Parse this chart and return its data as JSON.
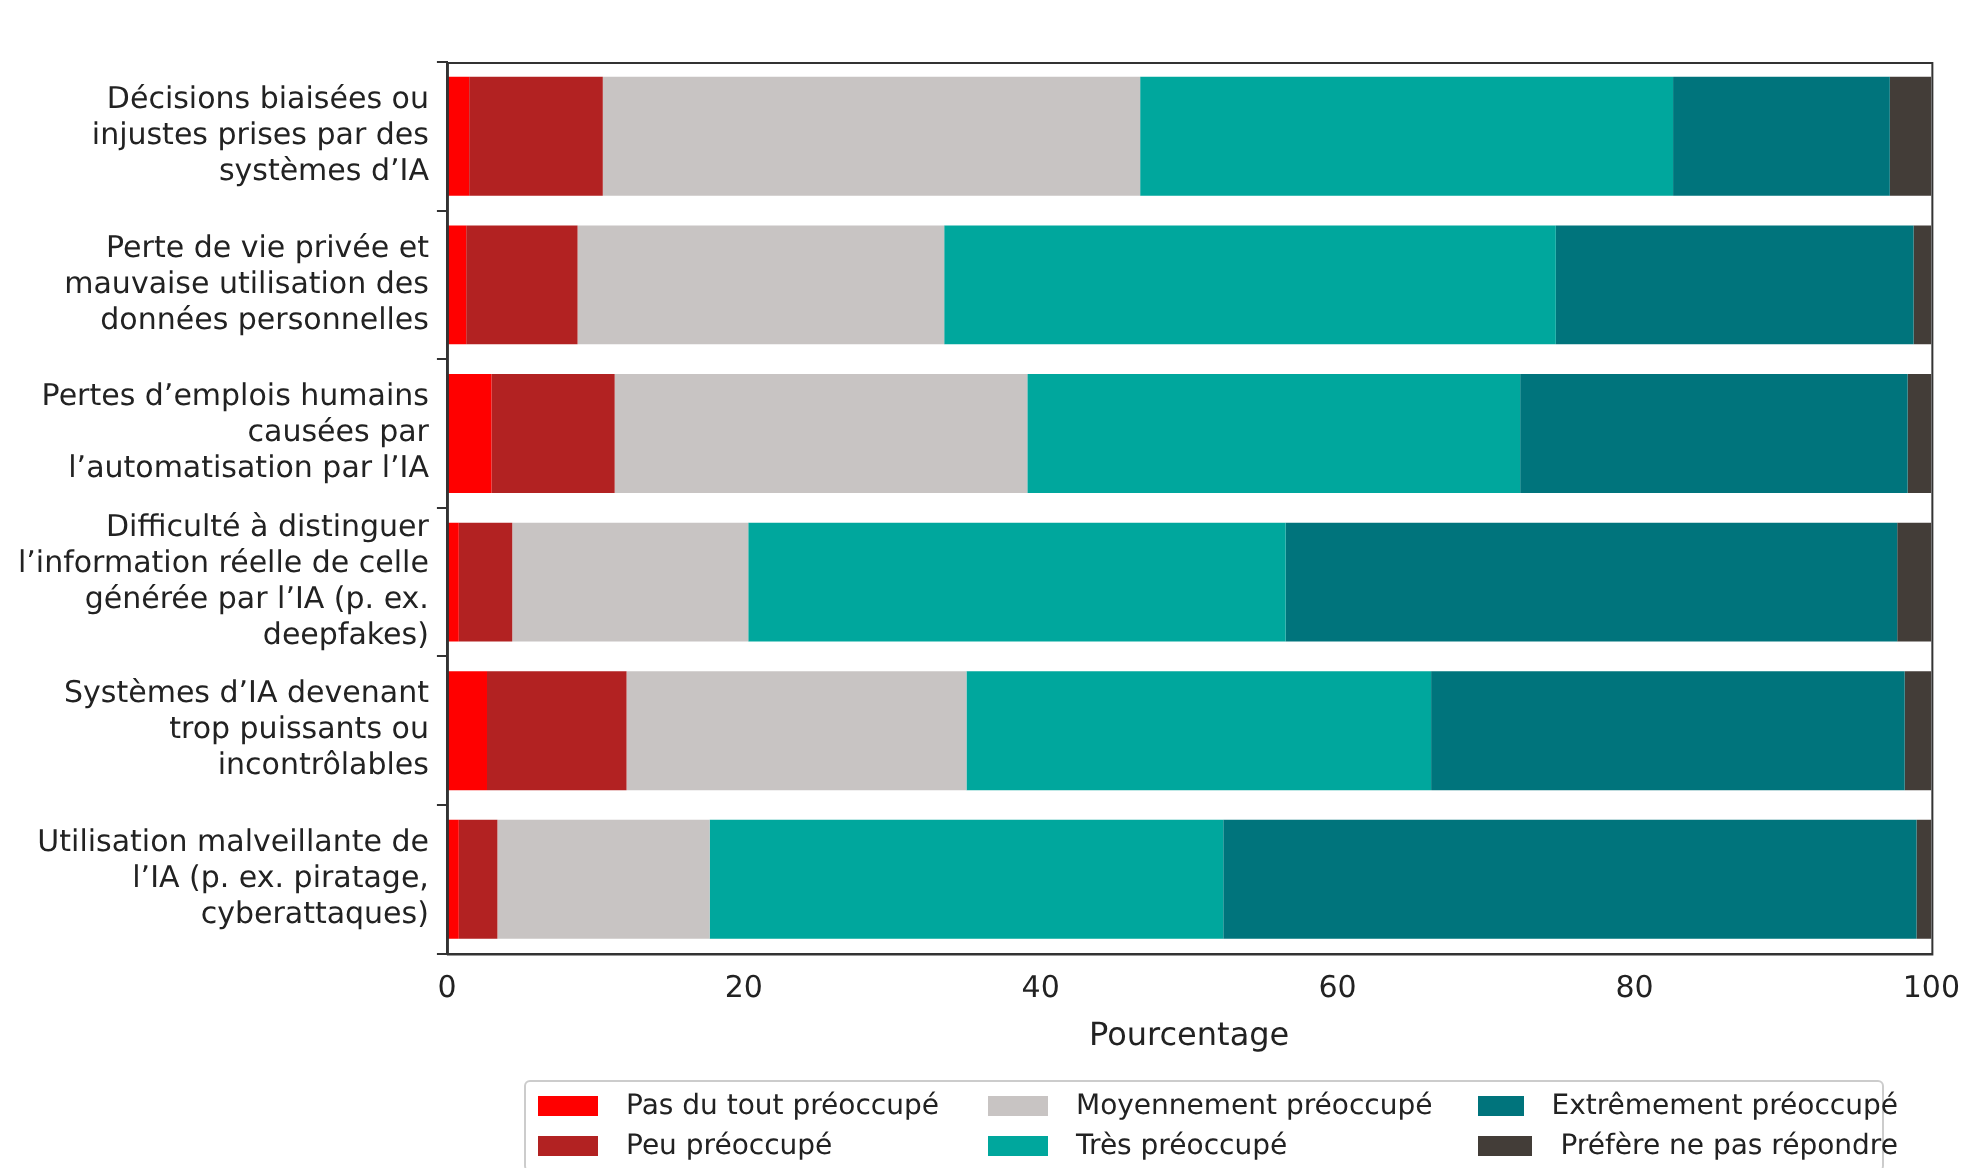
{
  "chart_data": {
    "type": "bar",
    "orientation": "horizontal",
    "stacked": true,
    "categories": [
      "Décisions biaisées ou injustes prises par des systèmes d’IA",
      "Perte de vie privée et mauvaise utilisation des données personnelles",
      "Pertes d’emplois humains causées par l’automatisation par l’IA",
      "Difficulté à distinguer l’information réelle de celle générée par l’IA (p. ex. deepfakes)",
      "Systèmes d’IA devenant trop puissants ou incontrôlables",
      "Utilisation malveillante de l’IA (p. ex. piratage, cyberattaques)"
    ],
    "series": [
      {
        "name": "Pas du tout préoccupé",
        "color": "#ff0000",
        "values": [
          1.5,
          1.3,
          3.0,
          0.8,
          2.7,
          0.8
        ]
      },
      {
        "name": "Peu préoccupé",
        "color": "#b22222",
        "values": [
          9.0,
          7.5,
          8.3,
          3.6,
          9.4,
          2.6
        ]
      },
      {
        "name": "Moyennement préoccupé",
        "color": "#c8c4c3",
        "values": [
          36.2,
          24.7,
          27.8,
          15.9,
          22.9,
          14.3
        ]
      },
      {
        "name": "Très préoccupé",
        "color": "#00a79d",
        "values": [
          35.9,
          41.2,
          33.2,
          36.2,
          31.3,
          34.6
        ]
      },
      {
        "name": "Extrêmement préoccupé",
        "color": "#00747c",
        "values": [
          14.6,
          24.1,
          26.1,
          41.2,
          31.9,
          46.7
        ]
      },
      {
        "name": "Préfère ne pas répondre",
        "color": "#433d38",
        "values": [
          2.8,
          1.2,
          1.6,
          2.3,
          1.8,
          1.0
        ]
      }
    ],
    "xlabel": "Pourcentage",
    "xlim": [
      0,
      100
    ],
    "xticks": [
      0,
      20,
      40,
      60,
      80,
      100
    ],
    "grid": false,
    "legend": "bottom"
  }
}
